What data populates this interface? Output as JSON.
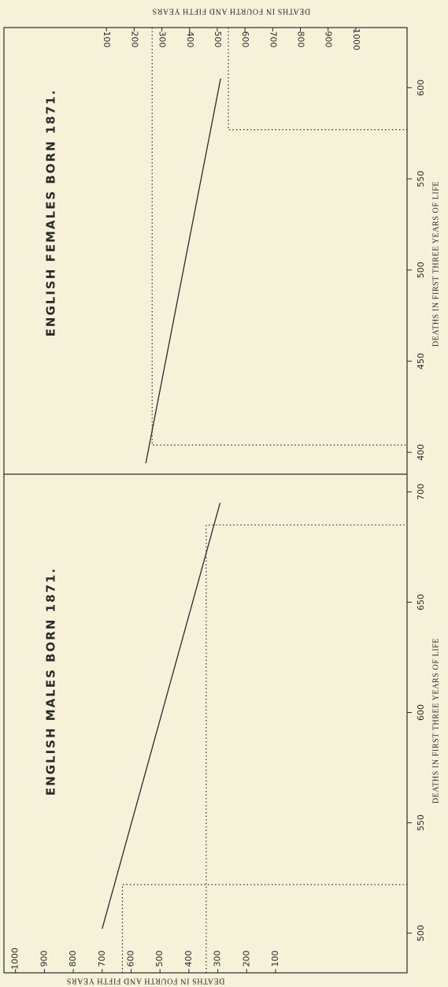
{
  "chart_data": [
    {
      "type": "line",
      "title": "ENGLISH FEMALES BORN 1871.",
      "x_label": "DEATHS IN FIRST THREE YEARS OF LIFE",
      "y_label": "DEATHS IN FOURTH AND FIFTH YEARS",
      "xlim": [
        388,
        633
      ],
      "xticks": [
        400,
        450,
        500,
        550,
        600
      ],
      "ylim": [
        -270,
        1185
      ],
      "yticks": [
        100,
        200,
        300,
        400,
        500,
        600,
        700,
        800,
        900,
        1000
      ],
      "series": [
        {
          "color": "#2a2a2a",
          "x": [
            394,
            605
          ],
          "values": [
            242,
            512
          ]
        }
      ],
      "guides": [
        {
          "x": 404,
          "y": 265
        },
        {
          "x": 577,
          "y": 540
        }
      ],
      "guide_style": "dotted",
      "grid": false
    },
    {
      "type": "line",
      "title": "ENGLISH MALES BORN 1871.",
      "x_label": "DEATHS IN FIRST THREE YEARS OF LIFE",
      "y_label": "DEATHS IN FOURTH AND FIFTH YEARS",
      "xlim": [
        482,
        708
      ],
      "xticks": [
        500,
        550,
        600,
        650,
        700
      ],
      "ylim": [
        -355,
        1040
      ],
      "yticks": [
        100,
        200,
        300,
        400,
        500,
        600,
        700,
        800,
        900,
        1000
      ],
      "series": [
        {
          "color": "#2a2a2a",
          "x": [
            502,
            695
          ],
          "values": [
            700,
            292
          ]
        }
      ],
      "guides": [
        {
          "x": 522,
          "y": 630
        },
        {
          "x": 685,
          "y": 340
        }
      ],
      "guide_style": "dotted",
      "grid": false
    }
  ]
}
